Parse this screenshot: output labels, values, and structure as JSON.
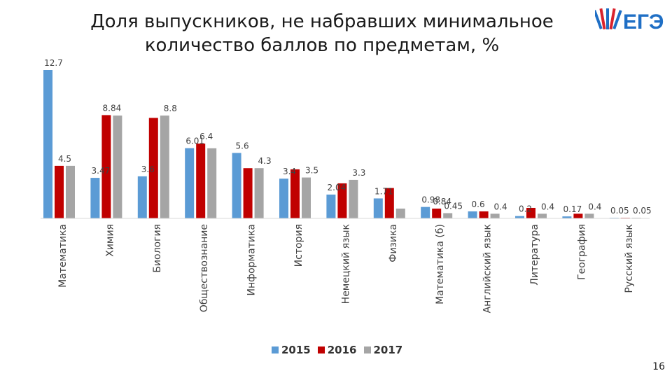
{
  "title_line1": "Доля выпускников, не набравших минимальное",
  "title_line2": "количество баллов по предметам, %",
  "logo_text": "ЕГЭ",
  "page_number": "16",
  "colors": {
    "s2015": "#5b9bd5",
    "s2016": "#c00000",
    "s2017": "#a5a5a5",
    "logo_blue": "#1f6fc5",
    "logo_red": "#d9232d"
  },
  "chart_data": {
    "type": "bar",
    "title": "Доля выпускников, не набравших минимальное количество баллов по предметам, %",
    "categories": [
      "Математика",
      "Химия",
      "Биология",
      "Обществознание",
      "Информатика",
      "История",
      "Немецкий язык",
      "Физика",
      "Математика (б)",
      "Английский язык",
      "Литература",
      "География",
      "Русский язык"
    ],
    "series": [
      {
        "name": "2015",
        "values": [
          12.7,
          3.47,
          3.6,
          6.01,
          5.6,
          3.4,
          2.04,
          1.71,
          0.98,
          0.6,
          0.2,
          0.17,
          0.05
        ],
        "labels": [
          "12.7",
          "3.47",
          "3.6",
          "6.01",
          "5.6",
          "3.4",
          "2.04",
          "1.71",
          "0.98",
          "0.6",
          "0.2",
          "0.17",
          "0.05"
        ]
      },
      {
        "name": "2016",
        "values": [
          4.5,
          8.84,
          8.6,
          6.4,
          4.3,
          4.2,
          3.0,
          2.6,
          0.84,
          0.6,
          0.9,
          0.4,
          0.05
        ],
        "labels": [
          "4.5",
          "8.84",
          "",
          "6.4",
          "",
          "",
          "",
          "",
          "0.84",
          "",
          "",
          "",
          ""
        ]
      },
      {
        "name": "2017",
        "values": [
          4.5,
          8.8,
          8.8,
          6.0,
          4.3,
          3.5,
          3.3,
          0.84,
          0.45,
          0.4,
          0.4,
          0.4,
          0.05
        ],
        "labels": [
          "",
          "",
          "8.8",
          "",
          "4.3",
          "3.5",
          "3.3",
          "",
          "0.45",
          "0.4",
          "0.4",
          "0.4",
          "0.05"
        ]
      }
    ],
    "ylim": [
      0,
      12.7
    ],
    "grid": false,
    "legend": "bottom-center",
    "xlabel": "",
    "ylabel": ""
  }
}
